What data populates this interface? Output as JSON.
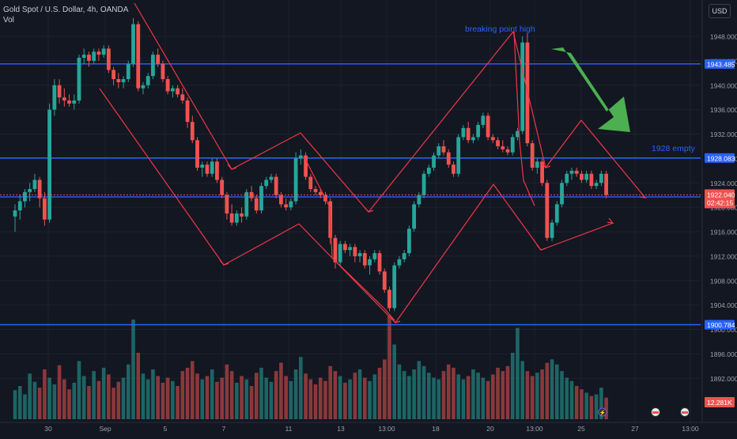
{
  "header": {
    "title": "Gold Spot / U.S. Dollar, 4h, OANDA",
    "vol_label": "Vol"
  },
  "currency_button": "USD",
  "colors": {
    "bg": "#131722",
    "up": "#26a69a",
    "down": "#ef5350",
    "level": "#2962ff",
    "drawing": "#f23645",
    "arrow": "#4caf50",
    "annotation": "#2962ff"
  },
  "chart_data": {
    "type": "candlestick",
    "symbol": "Gold Spot / U.S. Dollar",
    "timeframe": "4h",
    "source": "OANDA",
    "y_ticks": [
      1948,
      1944,
      1940,
      1936,
      1932,
      1928,
      1924,
      1920,
      1916,
      1912,
      1908,
      1904,
      1900,
      1896,
      1892
    ],
    "y_tick_labels": [
      "1948.000",
      "1944.000",
      "1940.000",
      "1936.000",
      "1932.000",
      "1928.000",
      "1924.000",
      "1920.000",
      "1916.000",
      "1912.000",
      "1908.000",
      "1904.000",
      "1900.000",
      "1896.000",
      "1892.000"
    ],
    "x_tick_labels": [
      "30",
      "Sep",
      "5",
      "7",
      "11",
      "13",
      "13:00",
      "18",
      "20",
      "13:00",
      "25",
      "27",
      "13:00"
    ],
    "horizontal_levels": [
      1943.485,
      1928.083,
      1921.709,
      1900.784
    ],
    "level_labels": [
      "1943.485",
      "1928.083",
      "1921.709",
      "1900.784"
    ],
    "last_price": "1922.040",
    "countdown": "02:42:15",
    "volume_label": "12.281K",
    "annotations": [
      "breaking point high",
      "1928 empty"
    ],
    "ohlc": [
      [
        1918.5,
        1920.5,
        1916,
        1919.5
      ],
      [
        1919.5,
        1922,
        1918,
        1921
      ],
      [
        1921,
        1923,
        1920,
        1922.5
      ],
      [
        1922.5,
        1924,
        1921,
        1923
      ],
      [
        1923,
        1925.5,
        1922.5,
        1924.5
      ],
      [
        1924.5,
        1925,
        1920,
        1921.5
      ],
      [
        1921.5,
        1922.5,
        1917,
        1918
      ],
      [
        1918,
        1937,
        1917.5,
        1936
      ],
      [
        1936,
        1941,
        1935,
        1940
      ],
      [
        1940,
        1941,
        1937,
        1938
      ],
      [
        1938,
        1939.5,
        1936.5,
        1937.5
      ],
      [
        1937.5,
        1938.5,
        1936.5,
        1937
      ],
      [
        1937,
        1938.5,
        1936,
        1937.5
      ],
      [
        1937.5,
        1945,
        1937,
        1944.5
      ],
      [
        1944.5,
        1946,
        1943.5,
        1945
      ],
      [
        1945,
        1945.5,
        1943,
        1944
      ],
      [
        1944,
        1946,
        1943.5,
        1945.5
      ],
      [
        1945.5,
        1946,
        1944,
        1945
      ],
      [
        1945,
        1946.5,
        1944.5,
        1946
      ],
      [
        1946,
        1946.5,
        1942,
        1942.5
      ],
      [
        1942.5,
        1943,
        1940,
        1941
      ],
      [
        1941,
        1942,
        1939.5,
        1940.5
      ],
      [
        1940.5,
        1941.5,
        1939.5,
        1941
      ],
      [
        1941,
        1944,
        1940.5,
        1943.5
      ],
      [
        1943.5,
        1951,
        1943,
        1950
      ],
      [
        1950,
        1950.5,
        1939,
        1939.5
      ],
      [
        1939.5,
        1940.5,
        1938.5,
        1940
      ],
      [
        1940,
        1942,
        1939.5,
        1941.5
      ],
      [
        1941.5,
        1945.5,
        1941,
        1945
      ],
      [
        1945,
        1946,
        1943,
        1943.5
      ],
      [
        1943.5,
        1944,
        1940.5,
        1941
      ],
      [
        1941,
        1941.5,
        1938.5,
        1939
      ],
      [
        1939,
        1940,
        1938,
        1939.5
      ],
      [
        1939.5,
        1940,
        1938,
        1938.5
      ],
      [
        1938.5,
        1939.5,
        1937,
        1937.5
      ],
      [
        1937.5,
        1938,
        1933,
        1934
      ],
      [
        1934,
        1935,
        1930.5,
        1931
      ],
      [
        1931,
        1931.5,
        1926,
        1926.5
      ],
      [
        1926.5,
        1927.5,
        1925,
        1927
      ],
      [
        1927,
        1927.5,
        1925,
        1925.5
      ],
      [
        1925.5,
        1928,
        1925,
        1927.5
      ],
      [
        1927.5,
        1928,
        1924,
        1924.5
      ],
      [
        1924.5,
        1925,
        1921.5,
        1922
      ],
      [
        1922,
        1922.5,
        1918,
        1919
      ],
      [
        1919,
        1920.5,
        1917,
        1917.5
      ],
      [
        1917.5,
        1919.5,
        1917,
        1919
      ],
      [
        1919,
        1920,
        1917.5,
        1918.5
      ],
      [
        1918.5,
        1923,
        1918,
        1922.5
      ],
      [
        1922.5,
        1923.5,
        1921,
        1921.5
      ],
      [
        1921.5,
        1922,
        1919,
        1919.5
      ],
      [
        1919.5,
        1924,
        1919,
        1923.5
      ],
      [
        1923.5,
        1925,
        1923,
        1924.5
      ],
      [
        1924.5,
        1925.5,
        1924,
        1925
      ],
      [
        1925,
        1925.5,
        1921.5,
        1922
      ],
      [
        1922,
        1922.5,
        1920,
        1920.5
      ],
      [
        1920.5,
        1921.5,
        1919.5,
        1920
      ],
      [
        1920,
        1921.5,
        1919.5,
        1921
      ],
      [
        1921,
        1929,
        1920.5,
        1928
      ],
      [
        1928,
        1929.5,
        1927,
        1928.5
      ],
      [
        1928.5,
        1929,
        1924.5,
        1925
      ],
      [
        1925,
        1925.5,
        1922.5,
        1923
      ],
      [
        1923,
        1923.5,
        1922,
        1922.5
      ],
      [
        1922.5,
        1923,
        1921.5,
        1922
      ],
      [
        1922,
        1922.5,
        1920.5,
        1921
      ],
      [
        1921,
        1921.5,
        1914,
        1915
      ],
      [
        1915,
        1915.5,
        1910,
        1911
      ],
      [
        1911,
        1914.5,
        1910.5,
        1914
      ],
      [
        1914,
        1914.5,
        1912.5,
        1913
      ],
      [
        1913,
        1914,
        1912,
        1913.5
      ],
      [
        1913.5,
        1914,
        1911,
        1912
      ],
      [
        1912,
        1913,
        1911,
        1912.5
      ],
      [
        1912.5,
        1913,
        1910,
        1910.5
      ],
      [
        1910.5,
        1912,
        1909,
        1911.5
      ],
      [
        1911.5,
        1913,
        1911,
        1912.5
      ],
      [
        1912.5,
        1913,
        1909,
        1909.5
      ],
      [
        1909.5,
        1910,
        1906,
        1906.5
      ],
      [
        1906.5,
        1907,
        1903,
        1903.5
      ],
      [
        1903.5,
        1911,
        1903,
        1910.5
      ],
      [
        1910.5,
        1912,
        1910,
        1911.5
      ],
      [
        1911.5,
        1913,
        1911,
        1912.5
      ],
      [
        1912.5,
        1917,
        1912,
        1916.5
      ],
      [
        1916.5,
        1921,
        1916,
        1920.5
      ],
      [
        1920.5,
        1922.5,
        1920,
        1922
      ],
      [
        1922,
        1926,
        1921.5,
        1925.5
      ],
      [
        1925.5,
        1927,
        1925,
        1926.5
      ],
      [
        1926.5,
        1929,
        1926,
        1928.5
      ],
      [
        1928.5,
        1930.5,
        1928,
        1930
      ],
      [
        1930,
        1931,
        1928.5,
        1929
      ],
      [
        1929,
        1929.5,
        1926.5,
        1927
      ],
      [
        1927,
        1927.5,
        1925,
        1925.5
      ],
      [
        1925.5,
        1932,
        1925,
        1931.5
      ],
      [
        1931.5,
        1933.5,
        1931,
        1933
      ],
      [
        1933,
        1934,
        1930.5,
        1931
      ],
      [
        1931,
        1932,
        1930.5,
        1931.5
      ],
      [
        1931.5,
        1934,
        1931,
        1933.5
      ],
      [
        1933.5,
        1935.5,
        1933,
        1935
      ],
      [
        1935,
        1935.5,
        1931,
        1931.5
      ],
      [
        1931.5,
        1932,
        1930.5,
        1931
      ],
      [
        1931,
        1931.5,
        1929.5,
        1930
      ],
      [
        1930,
        1931,
        1929,
        1929.5
      ],
      [
        1929.5,
        1930,
        1928.5,
        1929
      ],
      [
        1929,
        1932,
        1928.5,
        1931.5
      ],
      [
        1931.5,
        1933,
        1931,
        1932.5
      ],
      [
        1932.5,
        1948,
        1932,
        1947
      ],
      [
        1947,
        1948.5,
        1930,
        1930.5
      ],
      [
        1930.5,
        1931,
        1926,
        1926.5
      ],
      [
        1926.5,
        1928,
        1925.5,
        1927.5
      ],
      [
        1927.5,
        1928,
        1923.5,
        1924
      ],
      [
        1924,
        1924.5,
        1914.5,
        1915
      ],
      [
        1915,
        1918,
        1914.5,
        1917.5
      ],
      [
        1917.5,
        1921,
        1917,
        1920.5
      ],
      [
        1920.5,
        1924.5,
        1920,
        1924
      ],
      [
        1924,
        1926,
        1923.5,
        1925.5
      ],
      [
        1925.5,
        1926.5,
        1924.5,
        1926
      ],
      [
        1926,
        1926.5,
        1925,
        1925.5
      ],
      [
        1925.5,
        1926,
        1924,
        1924.5
      ],
      [
        1924.5,
        1926,
        1924,
        1925.5
      ],
      [
        1925.5,
        1926,
        1923,
        1923.5
      ],
      [
        1923.5,
        1924.5,
        1923,
        1924
      ],
      [
        1924,
        1926,
        1923.5,
        1925.5
      ],
      [
        1925.5,
        1926,
        1921.5,
        1922.04
      ]
    ],
    "volume": [
      35,
      40,
      30,
      55,
      45,
      38,
      60,
      50,
      42,
      65,
      48,
      36,
      44,
      70,
      52,
      40,
      58,
      46,
      62,
      54,
      38,
      45,
      50,
      66,
      120,
      80,
      55,
      48,
      60,
      52,
      44,
      50,
      46,
      40,
      58,
      62,
      70,
      55,
      48,
      52,
      60,
      45,
      50,
      66,
      58,
      44,
      52,
      48,
      40,
      56,
      62,
      50,
      45,
      58,
      68,
      52,
      46,
      60,
      75,
      55,
      48,
      42,
      50,
      46,
      64,
      58,
      52,
      44,
      48,
      56,
      60,
      50,
      46,
      54,
      62,
      72,
      125,
      90,
      66,
      58,
      52,
      60,
      70,
      64,
      56,
      50,
      48,
      58,
      66,
      62,
      54,
      48,
      52,
      60,
      56,
      50,
      46,
      54,
      62,
      58,
      64,
      80,
      110,
      70,
      58,
      52,
      56,
      60,
      68,
      72,
      66,
      58,
      50,
      46,
      40,
      36,
      32,
      28,
      30,
      38,
      26
    ]
  }
}
